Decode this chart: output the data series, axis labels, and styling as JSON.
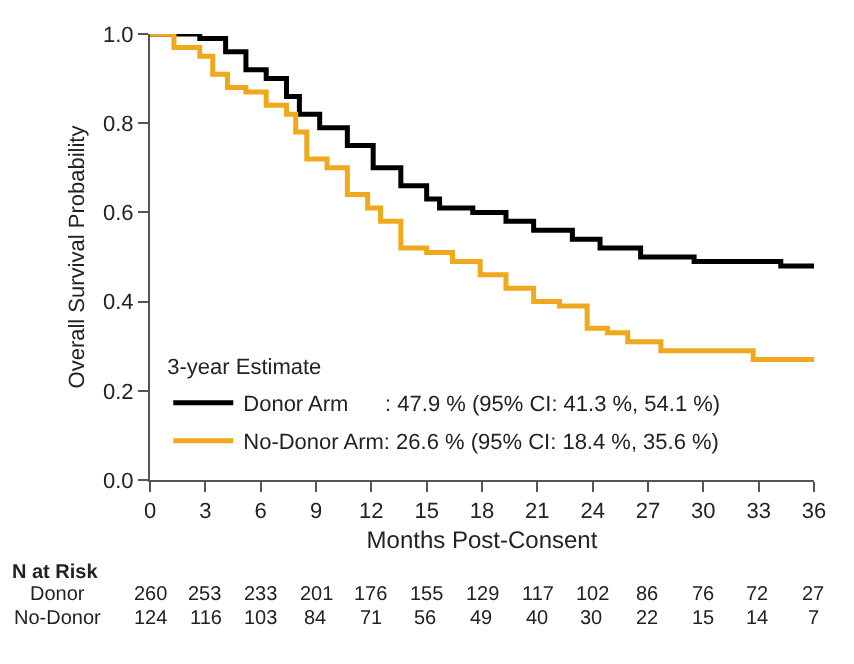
{
  "chart_data": {
    "type": "step",
    "xlabel": "Months Post-Consent",
    "ylabel": "Overall Survival Probability",
    "legend_title": "3-year Estimate",
    "legend": "bottom left",
    "marker": "none",
    "line_style": "solid",
    "xlim": [
      0,
      36
    ],
    "xticks": [
      0,
      3,
      6,
      9,
      12,
      15,
      18,
      21,
      24,
      27,
      30,
      33,
      36
    ],
    "ylim": [
      0,
      1
    ],
    "yticks": [
      {
        "value": 0,
        "label": "0.0"
      },
      {
        "value": 0.2,
        "label": "0.2"
      },
      {
        "value": 0.4,
        "label": "0.4"
      },
      {
        "value": 0.6,
        "label": "0.6"
      },
      {
        "value": 0.8,
        "label": "0.8"
      },
      {
        "value": 1,
        "label": "1.0"
      }
    ],
    "series": [
      {
        "name": "Donor Arm      : 47.9 % (95% CI: 41.3 %, 54.1 %)",
        "color": "#000000",
        "x": [
          0,
          2.7,
          4.1,
          5.2,
          6.3,
          7.4,
          8.1,
          9.2,
          10.7,
          12.1,
          13.6,
          15.0,
          15.7,
          17.5,
          19.3,
          20.8,
          22.9,
          24.4,
          26.6,
          29.5,
          34.2,
          36
        ],
        "values": [
          1.0,
          0.99,
          0.96,
          0.92,
          0.9,
          0.86,
          0.82,
          0.79,
          0.75,
          0.7,
          0.66,
          0.63,
          0.61,
          0.6,
          0.58,
          0.56,
          0.54,
          0.52,
          0.5,
          0.49,
          0.48,
          0.48
        ]
      },
      {
        "name": "No-Donor Arm: 26.6 % (95% CI: 18.4 %, 35.6 %)",
        "color": "#f0a81c",
        "x": [
          0,
          1.3,
          2.7,
          3.4,
          4.2,
          5.2,
          6.3,
          7.4,
          7.9,
          8.5,
          9.6,
          10.7,
          11.8,
          12.5,
          13.6,
          15.0,
          16.4,
          17.9,
          19.3,
          20.8,
          22.2,
          23.7,
          24.8,
          25.9,
          27.7,
          32.7,
          36
        ],
        "values": [
          1.0,
          0.97,
          0.95,
          0.91,
          0.88,
          0.87,
          0.84,
          0.82,
          0.78,
          0.72,
          0.7,
          0.64,
          0.61,
          0.58,
          0.52,
          0.51,
          0.49,
          0.46,
          0.43,
          0.4,
          0.39,
          0.34,
          0.33,
          0.31,
          0.29,
          0.27,
          0.27
        ]
      }
    ],
    "annotations": [
      "N at Risk",
      "Donor",
      "260",
      "253",
      "233",
      "201",
      "176",
      "155",
      "129",
      "117",
      "102",
      "86",
      "76",
      "72",
      "27",
      "No-Donor",
      "124",
      "116",
      "103",
      "84",
      "71",
      "56",
      "49",
      "40",
      "30",
      "22",
      "15",
      "14",
      "7"
    ]
  }
}
